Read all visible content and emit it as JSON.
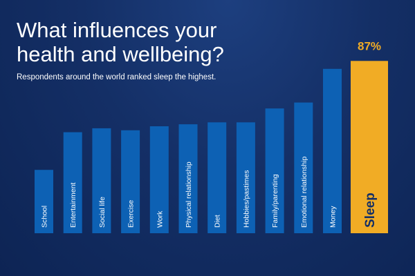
{
  "chart_data": {
    "type": "bar",
    "title": "What influences your\nhealth and wellbeing?",
    "subtitle": "Respondents around the world ranked sleep the highest.",
    "categories": [
      "School",
      "Entertainment",
      "Social life",
      "Exercise",
      "Work",
      "Physical relationship",
      "Diet",
      "Hobbies/pastimes",
      "Family/parenting",
      "Emotional relationship",
      "Money",
      "Sleep"
    ],
    "values": [
      32,
      51,
      53,
      52,
      54,
      55,
      56,
      56,
      63,
      66,
      83,
      87
    ],
    "highlight": {
      "category": "Sleep",
      "value_label": "87%"
    },
    "ylim": [
      0,
      100
    ],
    "grid": false,
    "colors": {
      "bar": "#0d61b4",
      "highlight": "#f1ac25",
      "label": "#ffffff",
      "highlight_label": "#142f66",
      "value_label": "#f1ac25"
    }
  }
}
